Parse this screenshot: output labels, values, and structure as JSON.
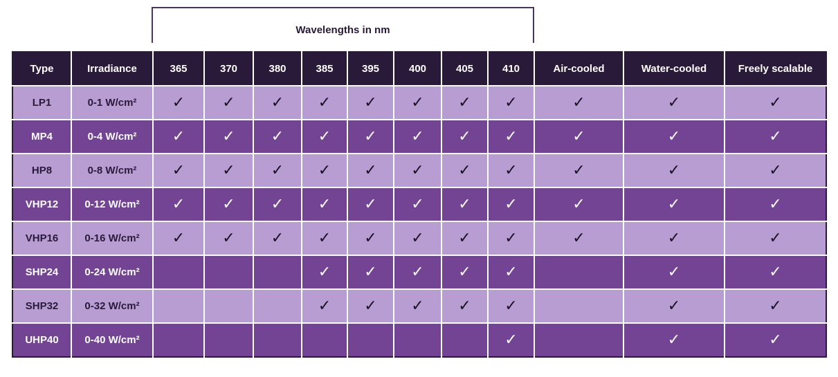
{
  "chart_data": {
    "type": "table",
    "group_header": "Wavelengths in nm",
    "columns": [
      "Type",
      "Irradiance",
      "365",
      "370",
      "380",
      "385",
      "395",
      "400",
      "405",
      "410",
      "Air-cooled",
      "Water-cooled",
      "Freely scalable"
    ],
    "check_symbol": "✓",
    "colors": {
      "header_bg": "#2a1a3a",
      "row_light": "#b89dd3",
      "row_dark": "#734494"
    },
    "rows": [
      {
        "type": "LP1",
        "irradiance": "0-1 W/cm²",
        "checks": [
          1,
          1,
          1,
          1,
          1,
          1,
          1,
          1,
          1,
          1,
          1
        ]
      },
      {
        "type": "MP4",
        "irradiance": "0-4 W/cm²",
        "checks": [
          1,
          1,
          1,
          1,
          1,
          1,
          1,
          1,
          1,
          1,
          1
        ]
      },
      {
        "type": "HP8",
        "irradiance": "0-8 W/cm²",
        "checks": [
          1,
          1,
          1,
          1,
          1,
          1,
          1,
          1,
          1,
          1,
          1
        ]
      },
      {
        "type": "VHP12",
        "irradiance": "0-12 W/cm²",
        "checks": [
          1,
          1,
          1,
          1,
          1,
          1,
          1,
          1,
          1,
          1,
          1
        ]
      },
      {
        "type": "VHP16",
        "irradiance": "0-16 W/cm²",
        "checks": [
          1,
          1,
          1,
          1,
          1,
          1,
          1,
          1,
          1,
          1,
          1
        ]
      },
      {
        "type": "SHP24",
        "irradiance": "0-24 W/cm²",
        "checks": [
          0,
          0,
          0,
          1,
          1,
          1,
          1,
          1,
          0,
          1,
          1
        ]
      },
      {
        "type": "SHP32",
        "irradiance": "0-32 W/cm²",
        "checks": [
          0,
          0,
          0,
          1,
          1,
          1,
          1,
          1,
          0,
          1,
          1
        ]
      },
      {
        "type": "UHP40",
        "irradiance": "0-40 W/cm²",
        "checks": [
          0,
          0,
          0,
          0,
          0,
          0,
          0,
          1,
          0,
          1,
          1
        ]
      }
    ]
  }
}
